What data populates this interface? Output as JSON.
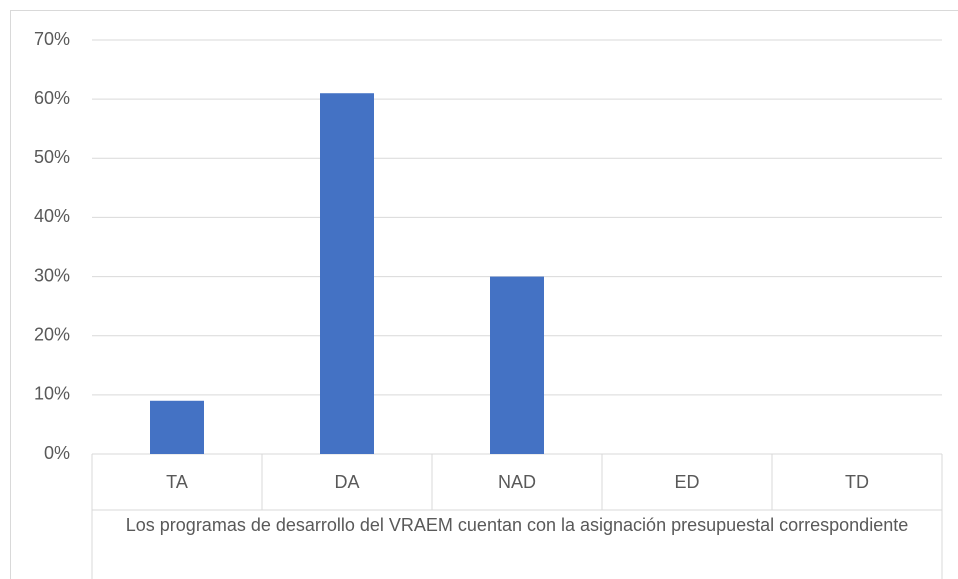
{
  "chart_data": {
    "type": "bar",
    "x_label": "Los programas de desarrollo del VRAEM cuentan con la asignación presupuestal correspondiente",
    "categories": [
      "TA",
      "DA",
      "NAD",
      "ED",
      "TD"
    ],
    "values": [
      9,
      61,
      30,
      0,
      0
    ],
    "color": "#4472c4",
    "ylim": [
      0,
      70
    ],
    "yticks": [
      {
        "value": 0,
        "label": "0%"
      },
      {
        "value": 10,
        "label": "10%"
      },
      {
        "value": 20,
        "label": "20%"
      },
      {
        "value": 30,
        "label": "30%"
      },
      {
        "value": 40,
        "label": "40%"
      },
      {
        "value": 50,
        "label": "50%"
      },
      {
        "value": 60,
        "label": "60%"
      },
      {
        "value": 70,
        "label": "70%"
      }
    ],
    "grid": true
  }
}
